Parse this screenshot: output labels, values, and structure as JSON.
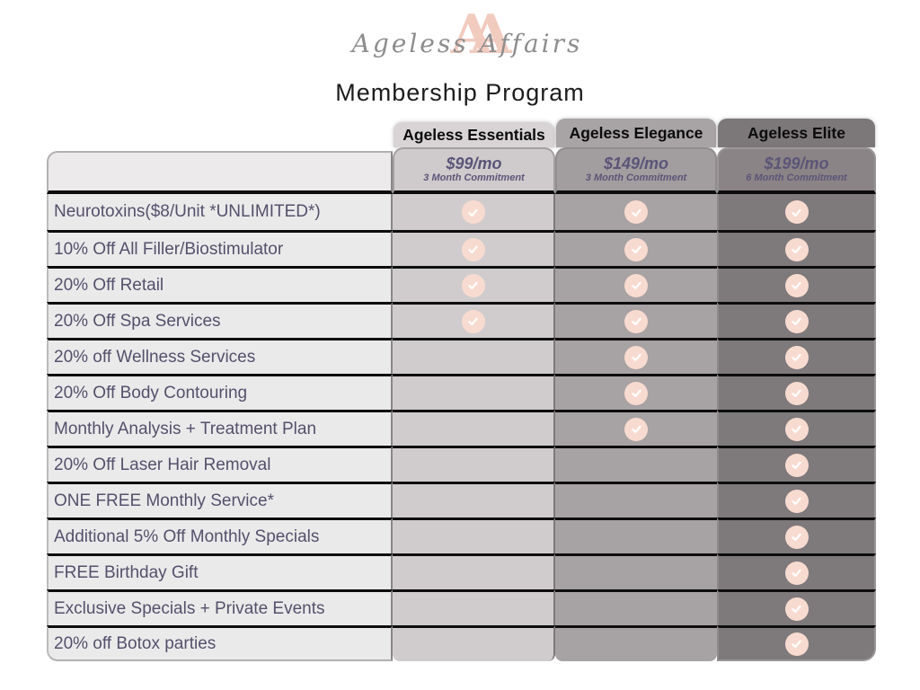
{
  "logo": {
    "monogram": "AA",
    "script_name": "Ageless Affairs"
  },
  "title": "Membership Program",
  "table": {
    "tiers": [
      {
        "name": "Ageless Essentials",
        "price": "$99/mo",
        "commitment": "3 Month Commitment"
      },
      {
        "name": "Ageless Elegance",
        "price": "$149/mo",
        "commitment": "3 Month Commitment"
      },
      {
        "name": "Ageless Elite",
        "price": "$199/mo",
        "commitment": "6 Month Commitment"
      }
    ],
    "benefits": [
      {
        "label": "Neurotoxins($8/Unit *UNLIMITED*)",
        "included": [
          true,
          true,
          true
        ]
      },
      {
        "label": "10% Off All Filler/Biostimulator",
        "included": [
          true,
          true,
          true
        ]
      },
      {
        "label": "20% Off Retail",
        "included": [
          true,
          true,
          true
        ]
      },
      {
        "label": "20% Off Spa Services",
        "included": [
          true,
          true,
          true
        ]
      },
      {
        "label": "20% off Wellness Services",
        "included": [
          false,
          true,
          true
        ]
      },
      {
        "label": "20% Off Body Contouring",
        "included": [
          false,
          true,
          true
        ]
      },
      {
        "label": "Monthly Analysis + Treatment Plan",
        "included": [
          false,
          true,
          true
        ]
      },
      {
        "label": "20% Off Laser Hair Removal",
        "included": [
          false,
          false,
          true
        ]
      },
      {
        "label": "ONE FREE Monthly Service*",
        "included": [
          false,
          false,
          true
        ]
      },
      {
        "label": "Additional 5% Off Monthly Specials",
        "included": [
          false,
          false,
          true
        ]
      },
      {
        "label": "FREE Birthday Gift",
        "included": [
          false,
          false,
          true
        ]
      },
      {
        "label": "Exclusive Specials + Private Events",
        "included": [
          false,
          false,
          true
        ]
      },
      {
        "label": "20% off Botox parties",
        "included": [
          false,
          false,
          true
        ]
      }
    ]
  },
  "icons": {
    "check": "check-icon"
  },
  "colors": {
    "accent-pink": "#f2cbbf",
    "check-bg": "#f8dbd0",
    "purple": "#5b5578",
    "purple-dark": "#55506b",
    "tier1-tab": "#d8d4d5",
    "tier1-price": "#cfcbcc",
    "tier1-body": "#d0cccd",
    "tier2-tab": "#a8a3a4",
    "tier2-price": "#a29d9f",
    "tier2-body": "#a7a2a3",
    "tier3-tab": "#7c7778",
    "tier3-price": "#8a8486",
    "tier3-body": "#7e797b"
  }
}
